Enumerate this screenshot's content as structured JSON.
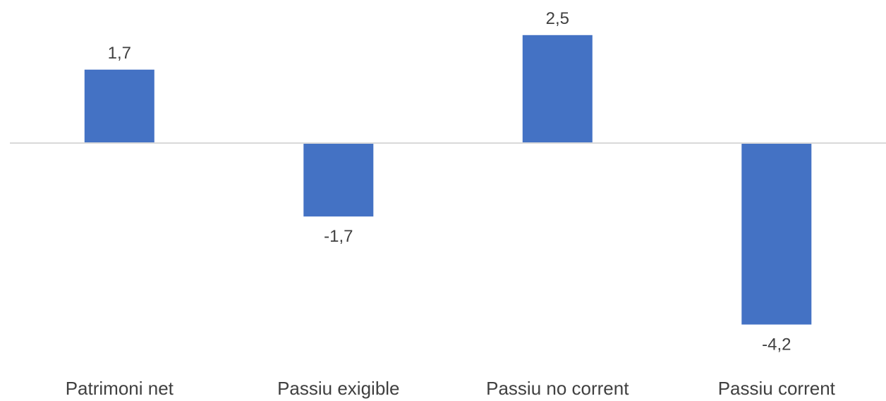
{
  "chart_data": {
    "type": "bar",
    "categories": [
      "Patrimoni net",
      "Passiu exigible",
      "Passiu no corrent",
      "Passiu corrent"
    ],
    "values": [
      1.7,
      -1.7,
      2.5,
      -4.2
    ],
    "value_labels": [
      "1,7",
      "-1,7",
      "2,5",
      "-4,2"
    ],
    "title": "",
    "xlabel": "",
    "ylabel": "",
    "ylim": [
      -4.2,
      2.5
    ],
    "grid": false,
    "legend": "none",
    "colors": {
      "bar": "#4472C4",
      "axis": "#D9D9D9",
      "text": "#404040"
    }
  }
}
